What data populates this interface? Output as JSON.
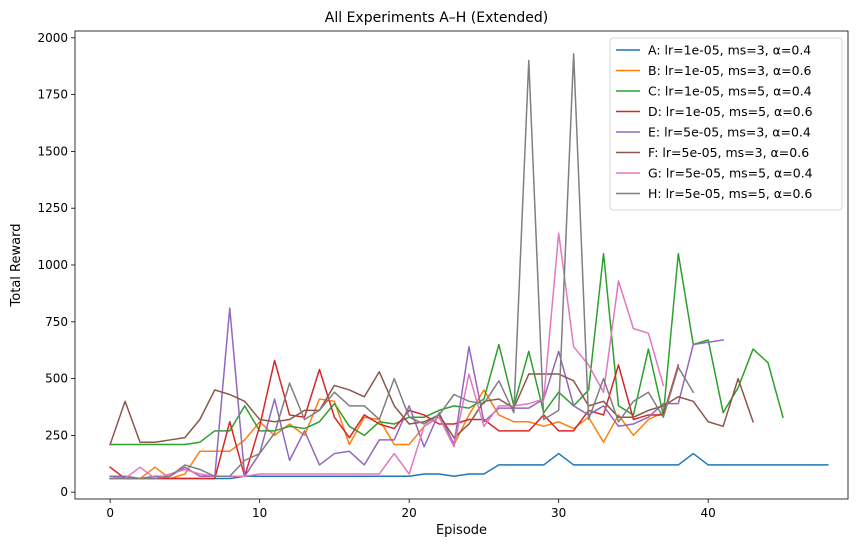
{
  "chart_data": {
    "type": "line",
    "title": "All Experiments A–H (Extended)",
    "xlabel": "Episode",
    "ylabel": "Total Reward",
    "xlim": [
      -2.35,
      49.35
    ],
    "ylim": [
      -30,
      2030
    ],
    "xticks": [
      0,
      10,
      20,
      30,
      40
    ],
    "yticks": [
      0,
      250,
      500,
      750,
      1000,
      1250,
      1500,
      1750,
      2000
    ],
    "grid": false,
    "legend_position": "top-right",
    "series": [
      {
        "name": "A: lr=1e-05, ms=3, α=0.4",
        "color": "#1f77b4",
        "values": [
          60,
          60,
          60,
          60,
          60,
          60,
          60,
          60,
          60,
          70,
          70,
          70,
          70,
          70,
          70,
          70,
          70,
          70,
          70,
          70,
          70,
          80,
          80,
          70,
          80,
          80,
          120,
          120,
          120,
          120,
          170,
          120,
          120,
          120,
          120,
          120,
          120,
          120,
          120,
          170,
          120,
          120,
          120,
          120,
          120,
          120,
          120,
          120,
          120
        ]
      },
      {
        "name": "B: lr=1e-05, ms=3, α=0.6",
        "color": "#ff7f0e",
        "values": [
          60,
          70,
          60,
          110,
          60,
          80,
          180,
          180,
          180,
          230,
          310,
          250,
          300,
          250,
          410,
          400,
          210,
          330,
          320,
          210,
          210,
          290,
          330,
          210,
          340,
          450,
          340,
          310,
          310,
          290,
          310,
          280,
          330,
          220,
          340,
          250,
          320,
          350
        ]
      },
      {
        "name": "C: lr=1e-05, ms=5, α=0.4",
        "color": "#2ca02c",
        "values": [
          210,
          210,
          210,
          210,
          210,
          210,
          220,
          270,
          270,
          380,
          270,
          270,
          290,
          280,
          310,
          390,
          290,
          250,
          310,
          300,
          330,
          330,
          360,
          380,
          370,
          410,
          650,
          380,
          620,
          350,
          440,
          380,
          450,
          1050,
          380,
          340,
          630,
          340,
          1050,
          650,
          670,
          350,
          460,
          630,
          570,
          330
        ]
      },
      {
        "name": "D: lr=1e-05, ms=5, α=0.6",
        "color": "#d62728",
        "values": [
          110,
          60,
          60,
          60,
          60,
          60,
          60,
          60,
          310,
          70,
          290,
          580,
          340,
          330,
          540,
          330,
          240,
          340,
          300,
          280,
          360,
          340,
          300,
          300,
          320,
          320,
          270,
          270,
          270,
          340,
          270,
          270,
          360,
          340,
          560,
          320,
          340,
          340,
          560
        ]
      },
      {
        "name": "E: lr=5e-05, ms=3, α=0.4",
        "color": "#9467bd",
        "values": [
          70,
          70,
          60,
          70,
          70,
          110,
          70,
          70,
          810,
          70,
          170,
          410,
          140,
          270,
          120,
          170,
          180,
          120,
          230,
          230,
          380,
          200,
          350,
          210,
          640,
          310,
          370,
          370,
          370,
          410,
          620,
          380,
          340,
          380,
          290,
          300,
          330,
          390,
          390,
          650,
          660,
          670
        ]
      },
      {
        "name": "F: lr=5e-05, ms=3, α=0.6",
        "color": "#8c564b",
        "values": [
          210,
          400,
          220,
          220,
          230,
          240,
          320,
          450,
          430,
          400,
          320,
          310,
          320,
          360,
          360,
          470,
          450,
          420,
          530,
          380,
          300,
          310,
          340,
          240,
          300,
          400,
          410,
          370,
          520,
          520,
          520,
          490,
          380,
          400,
          330,
          330,
          360,
          380,
          420,
          400,
          310,
          290,
          500,
          310
        ]
      },
      {
        "name": "G: lr=5e-05, ms=5, α=0.4",
        "color": "#e377c2",
        "values": [
          60,
          60,
          110,
          60,
          80,
          100,
          80,
          70,
          70,
          70,
          80,
          80,
          80,
          80,
          80,
          80,
          80,
          80,
          80,
          170,
          80,
          290,
          330,
          200,
          520,
          290,
          380,
          380,
          390,
          410,
          1140,
          640,
          560,
          440,
          930,
          720,
          700,
          470
        ]
      },
      {
        "name": "H: lr=5e-05, ms=5, α=0.6",
        "color": "#7f7f7f",
        "values": [
          60,
          60,
          60,
          60,
          70,
          120,
          100,
          70,
          70,
          140,
          170,
          260,
          480,
          320,
          360,
          440,
          380,
          380,
          320,
          500,
          330,
          300,
          340,
          430,
          400,
          390,
          490,
          350,
          1900,
          320,
          360,
          1930,
          320,
          500,
          310,
          400,
          440,
          330,
          550,
          440
        ]
      }
    ]
  }
}
